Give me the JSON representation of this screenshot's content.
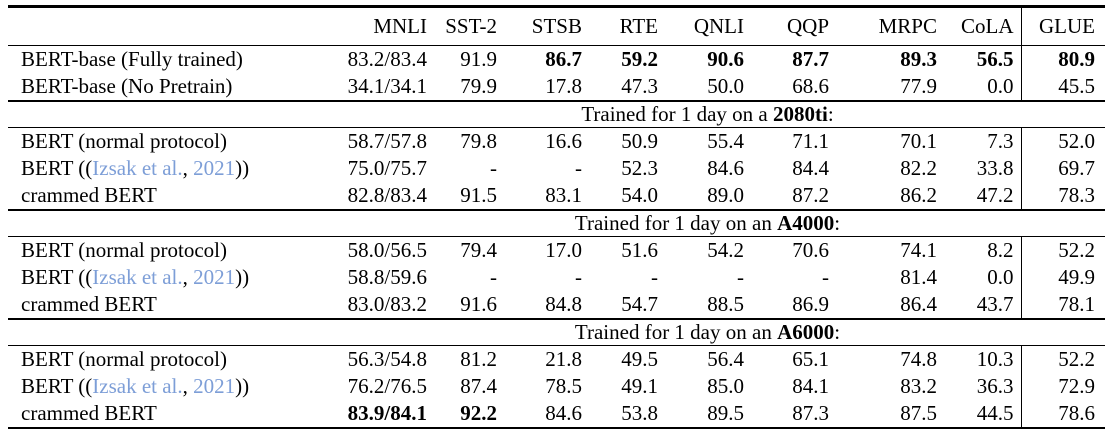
{
  "colors": {
    "link_blue": "#7d9ed7",
    "text": "#000000",
    "rule": "#000000",
    "background": "#ffffff"
  },
  "table": {
    "columns": [
      "",
      "MNLI",
      "SST-2",
      "STSB",
      "RTE",
      "QNLI",
      "QQP",
      "MRPC",
      "CoLA",
      "GLUE"
    ],
    "sections": [
      {
        "title_parts": null,
        "rows": [
          {
            "label_parts": [
              {
                "text": "BERT-base (Fully trained)",
                "style": "plain"
              }
            ],
            "values": [
              "83.2/83.4",
              "91.9",
              "86.7",
              "59.2",
              "90.6",
              "87.7",
              "89.3",
              "56.5",
              "80.9"
            ],
            "bold": [
              0,
              0,
              1,
              1,
              1,
              1,
              1,
              1,
              1
            ]
          },
          {
            "label_parts": [
              {
                "text": "BERT-base (No Pretrain)",
                "style": "plain"
              }
            ],
            "values": [
              "34.1/34.1",
              "79.9",
              "17.8",
              "47.3",
              "50.0",
              "68.6",
              "77.9",
              "0.0",
              "45.5"
            ],
            "bold": [
              0,
              0,
              0,
              0,
              0,
              0,
              0,
              0,
              0
            ]
          }
        ]
      },
      {
        "title_parts": [
          {
            "text": "Trained for 1 day on a ",
            "style": "plain"
          },
          {
            "text": "2080ti",
            "style": "bold"
          },
          {
            "text": ":",
            "style": "plain"
          }
        ],
        "rows": [
          {
            "label_parts": [
              {
                "text": "BERT (normal protocol)",
                "style": "plain"
              }
            ],
            "values": [
              "58.7/57.8",
              "79.8",
              "16.6",
              "50.9",
              "55.4",
              "71.1",
              "70.1",
              "7.3",
              "52.0"
            ],
            "bold": [
              0,
              0,
              0,
              0,
              0,
              0,
              0,
              0,
              0
            ]
          },
          {
            "label_parts": [
              {
                "text": "BERT ((",
                "style": "plain"
              },
              {
                "text": "Izsak et al.",
                "style": "link"
              },
              {
                "text": ", ",
                "style": "plain"
              },
              {
                "text": "2021",
                "style": "link"
              },
              {
                "text": "))",
                "style": "plain"
              }
            ],
            "values": [
              "75.0/75.7",
              "-",
              "-",
              "52.3",
              "84.6",
              "84.4",
              "82.2",
              "33.8",
              "69.7"
            ],
            "bold": [
              0,
              0,
              0,
              0,
              0,
              0,
              0,
              0,
              0
            ]
          },
          {
            "label_parts": [
              {
                "text": "crammed BERT",
                "style": "plain"
              }
            ],
            "values": [
              "82.8/83.4",
              "91.5",
              "83.1",
              "54.0",
              "89.0",
              "87.2",
              "86.2",
              "47.2",
              "78.3"
            ],
            "bold": [
              0,
              0,
              0,
              0,
              0,
              0,
              0,
              0,
              0
            ]
          }
        ]
      },
      {
        "title_parts": [
          {
            "text": "Trained for 1 day on an ",
            "style": "plain"
          },
          {
            "text": "A4000",
            "style": "bold"
          },
          {
            "text": ":",
            "style": "plain"
          }
        ],
        "rows": [
          {
            "label_parts": [
              {
                "text": "BERT (normal protocol)",
                "style": "plain"
              }
            ],
            "values": [
              "58.0/56.5",
              "79.4",
              "17.0",
              "51.6",
              "54.2",
              "70.6",
              "74.1",
              "8.2",
              "52.2"
            ],
            "bold": [
              0,
              0,
              0,
              0,
              0,
              0,
              0,
              0,
              0
            ]
          },
          {
            "label_parts": [
              {
                "text": "BERT ((",
                "style": "plain"
              },
              {
                "text": "Izsak et al.",
                "style": "link"
              },
              {
                "text": ", ",
                "style": "plain"
              },
              {
                "text": "2021",
                "style": "link"
              },
              {
                "text": "))",
                "style": "plain"
              }
            ],
            "values": [
              "58.8/59.6",
              "-",
              "-",
              "-",
              "-",
              "-",
              "81.4",
              "0.0",
              "49.9"
            ],
            "bold": [
              0,
              0,
              0,
              0,
              0,
              0,
              0,
              0,
              0
            ]
          },
          {
            "label_parts": [
              {
                "text": "crammed BERT",
                "style": "plain"
              }
            ],
            "values": [
              "83.0/83.2",
              "91.6",
              "84.8",
              "54.7",
              "88.5",
              "86.9",
              "86.4",
              "43.7",
              "78.1"
            ],
            "bold": [
              0,
              0,
              0,
              0,
              0,
              0,
              0,
              0,
              0
            ]
          }
        ]
      },
      {
        "title_parts": [
          {
            "text": "Trained for 1 day on an ",
            "style": "plain"
          },
          {
            "text": "A6000",
            "style": "bold"
          },
          {
            "text": ":",
            "style": "plain"
          }
        ],
        "rows": [
          {
            "label_parts": [
              {
                "text": "BERT (normal protocol)",
                "style": "plain"
              }
            ],
            "values": [
              "56.3/54.8",
              "81.2",
              "21.8",
              "49.5",
              "56.4",
              "65.1",
              "74.8",
              "10.3",
              "52.2"
            ],
            "bold": [
              0,
              0,
              0,
              0,
              0,
              0,
              0,
              0,
              0
            ]
          },
          {
            "label_parts": [
              {
                "text": "BERT ((",
                "style": "plain"
              },
              {
                "text": "Izsak et al.",
                "style": "link"
              },
              {
                "text": ", ",
                "style": "plain"
              },
              {
                "text": "2021",
                "style": "link"
              },
              {
                "text": "))",
                "style": "plain"
              }
            ],
            "values": [
              "76.2/76.5",
              "87.4",
              "78.5",
              "49.1",
              "85.0",
              "84.1",
              "83.2",
              "36.3",
              "72.9"
            ],
            "bold": [
              0,
              0,
              0,
              0,
              0,
              0,
              0,
              0,
              0
            ]
          },
          {
            "label_parts": [
              {
                "text": "crammed BERT",
                "style": "plain"
              }
            ],
            "values": [
              "83.9/84.1",
              "92.2",
              "84.6",
              "53.8",
              "89.5",
              "87.3",
              "87.5",
              "44.5",
              "78.6"
            ],
            "bold": [
              1,
              1,
              0,
              0,
              0,
              0,
              0,
              0,
              0
            ]
          }
        ]
      }
    ]
  }
}
